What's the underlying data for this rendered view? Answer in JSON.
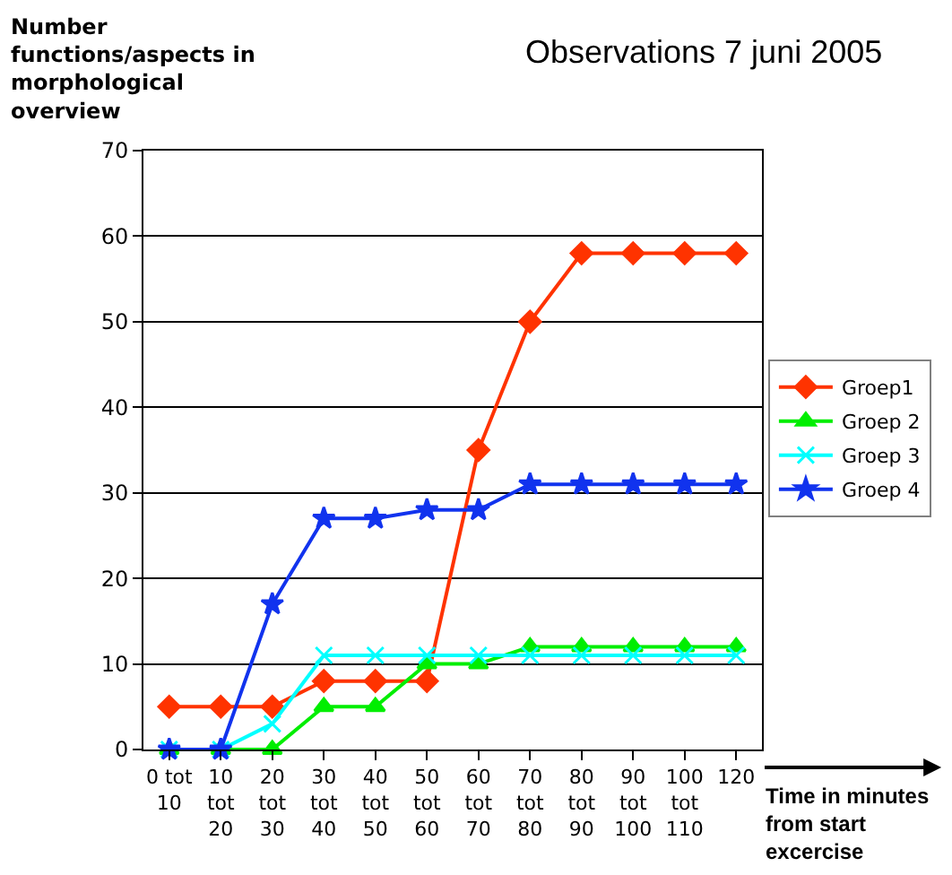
{
  "chart_data": {
    "type": "line",
    "title": "Observations 7 juni 2005",
    "ylabel": "Number\nfunctions/aspects in\nmorphological\noverview",
    "xlabel": "Time in minutes\nfrom start\nexcercise",
    "categories": [
      "0 tot\n10",
      "10\ntot\n20",
      "20\ntot\n30",
      "30\ntot\n40",
      "40\ntot\n50",
      "50\ntot\n60",
      "60\ntot\n70",
      "70\ntot\n80",
      "80\ntot\n90",
      "90\ntot\n100",
      "100\ntot\n110",
      "120"
    ],
    "series": [
      {
        "name": "Groep1",
        "color": "#ff3300",
        "marker": "diamond",
        "values": [
          5,
          5,
          5,
          8,
          8,
          8,
          35,
          50,
          58,
          58,
          58,
          58
        ]
      },
      {
        "name": "Groep 2",
        "color": "#00ee00",
        "marker": "triangle",
        "values": [
          0,
          0,
          0,
          5,
          5,
          10,
          10,
          12,
          12,
          12,
          12,
          12
        ]
      },
      {
        "name": "Groep 3",
        "color": "#00ffff",
        "marker": "cross",
        "values": [
          0,
          0,
          3,
          11,
          11,
          11,
          11,
          11,
          11,
          11,
          11,
          11
        ]
      },
      {
        "name": "Groep 4",
        "color": "#1133ee",
        "marker": "star",
        "values": [
          0,
          0,
          17,
          27,
          27,
          28,
          28,
          31,
          31,
          31,
          31,
          31
        ]
      }
    ],
    "ylim": [
      0,
      70
    ],
    "yticks": [
      0,
      10,
      20,
      30,
      40,
      50,
      60,
      70
    ],
    "grid": "y",
    "legend": "right",
    "line_style": "solid"
  }
}
